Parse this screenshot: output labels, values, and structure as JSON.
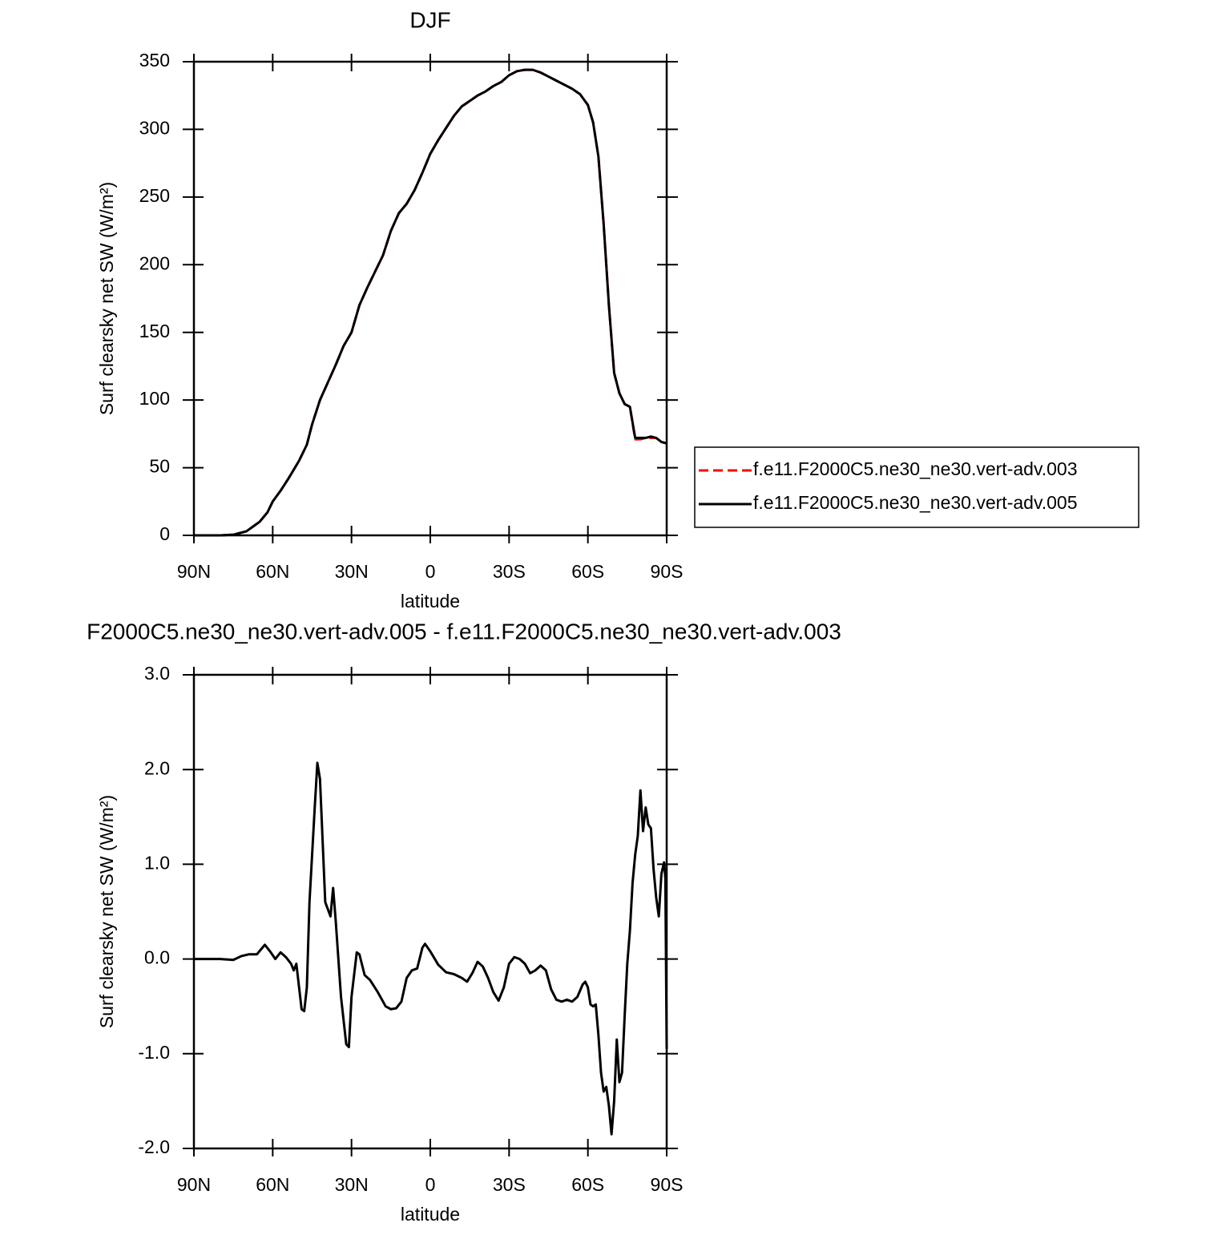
{
  "chart_data": [
    {
      "type": "line",
      "title": "DJF",
      "xlabel": "latitude",
      "ylabel": "Surf clearsky net SW (W/m²)",
      "x": [
        90,
        80,
        75,
        70,
        65,
        62,
        60,
        57,
        54,
        50,
        47,
        45,
        42,
        39,
        36,
        33,
        30,
        27,
        24,
        21,
        18,
        15,
        12,
        9,
        6,
        3,
        0,
        -3,
        -6,
        -9,
        -12,
        -15,
        -18,
        -21,
        -24,
        -27,
        -30,
        -33,
        -36,
        -39,
        -42,
        -45,
        -48,
        -51,
        -54,
        -57,
        -60,
        -62,
        -64,
        -66,
        -68,
        -70,
        -72,
        -74,
        -76,
        -78,
        -80,
        -82,
        -84,
        -86,
        -88,
        -90
      ],
      "series": [
        {
          "name": "f.e11.F2000C5.ne30_ne30.vert-adv.003",
          "color": "#ff0000",
          "dash": true,
          "values": [
            0,
            0,
            0.5,
            3,
            10,
            17,
            25,
            33,
            42,
            55,
            67,
            82,
            100,
            113,
            126,
            140,
            150,
            170,
            183,
            195,
            207,
            225,
            238,
            245,
            255,
            268,
            282,
            292,
            301,
            310,
            317,
            321,
            325,
            328,
            332,
            335,
            340,
            343,
            344,
            344,
            342,
            339,
            336,
            333,
            330,
            326,
            318,
            305,
            280,
            230,
            170,
            120,
            105,
            97,
            95,
            71,
            71,
            72,
            72,
            72,
            69,
            68
          ]
        },
        {
          "name": "f.e11.F2000C5.ne30_ne30.vert-adv.005",
          "color": "#000000",
          "dash": false,
          "values": [
            0,
            0,
            0.5,
            3,
            10,
            17,
            25,
            33,
            42,
            55,
            67,
            82,
            100,
            113,
            126,
            140,
            150,
            170,
            183,
            195,
            207,
            225,
            238,
            245,
            255,
            268,
            282,
            292,
            301,
            310,
            317,
            321,
            325,
            328,
            332,
            335,
            340,
            343,
            344,
            344,
            342,
            339,
            336,
            333,
            330,
            326,
            318,
            305,
            280,
            230,
            170,
            120,
            105,
            97,
            95,
            72,
            72,
            72,
            73,
            72,
            69,
            68
          ]
        }
      ],
      "xlim": [
        90,
        -90
      ],
      "xticks": [
        {
          "value": 90,
          "label": "90N"
        },
        {
          "value": 60,
          "label": "60N"
        },
        {
          "value": 30,
          "label": "30N"
        },
        0,
        {
          "value": -30,
          "label": "30S"
        },
        {
          "value": -60,
          "label": "60S"
        },
        {
          "value": -90,
          "label": "90S"
        }
      ],
      "ylim": [
        0,
        350
      ],
      "yticks": [
        0,
        50,
        100,
        150,
        200,
        250,
        300,
        350
      ],
      "legend": "outside-right"
    },
    {
      "type": "line",
      "title": "F2000C5.ne30_ne30.vert-adv.005 - f.e11.F2000C5.ne30_ne30.vert-adv.003",
      "xlabel": "latitude",
      "ylabel": "Surf clearsky net SW (W/m²)",
      "x": [
        90,
        80,
        75,
        72,
        69,
        66,
        63,
        61,
        59,
        57,
        55,
        53,
        52,
        51,
        49,
        48,
        47,
        46,
        44,
        43,
        42,
        40,
        38,
        37,
        36,
        34,
        32,
        31,
        30,
        28,
        27,
        25,
        23,
        20,
        17,
        15,
        13,
        11,
        9,
        7,
        5,
        3,
        2,
        0,
        -3,
        -6,
        -9,
        -12,
        -14,
        -16,
        -18,
        -20,
        -22,
        -24,
        -26,
        -28,
        -30,
        -32,
        -34,
        -36,
        -38,
        -40,
        -42,
        -44,
        -46,
        -48,
        -50,
        -52,
        -54,
        -56,
        -58,
        -59,
        -60,
        -61,
        -62,
        -63,
        -64,
        -65,
        -66,
        -67,
        -68,
        -69,
        -70,
        -71,
        -72,
        -73,
        -74,
        -75,
        -76,
        -77,
        -78,
        -79,
        -80,
        -81,
        -82,
        -83,
        -84,
        -85,
        -86,
        -87,
        -88,
        -89,
        -89.5,
        -90
      ],
      "values": [
        0,
        0,
        -0.01,
        0.03,
        0.05,
        0.05,
        0.15,
        0.08,
        0,
        0.07,
        0.02,
        -0.05,
        -0.12,
        -0.05,
        -0.53,
        -0.55,
        -0.3,
        0.6,
        1.6,
        2.07,
        1.9,
        0.6,
        0.45,
        0.75,
        0.4,
        -0.4,
        -0.9,
        -0.93,
        -0.4,
        0.07,
        0.05,
        -0.17,
        -0.22,
        -0.35,
        -0.5,
        -0.53,
        -0.52,
        -0.45,
        -0.2,
        -0.12,
        -0.1,
        0.12,
        0.16,
        0.08,
        -0.06,
        -0.14,
        -0.16,
        -0.2,
        -0.24,
        -0.15,
        -0.03,
        -0.08,
        -0.2,
        -0.35,
        -0.44,
        -0.3,
        -0.05,
        0.02,
        0,
        -0.05,
        -0.15,
        -0.12,
        -0.07,
        -0.12,
        -0.32,
        -0.43,
        -0.45,
        -0.43,
        -0.45,
        -0.4,
        -0.27,
        -0.24,
        -0.3,
        -0.48,
        -0.5,
        -0.48,
        -0.8,
        -1.2,
        -1.4,
        -1.35,
        -1.55,
        -1.85,
        -1.5,
        -0.85,
        -1.3,
        -1.2,
        -0.6,
        -0.05,
        0.3,
        0.8,
        1.1,
        1.3,
        1.78,
        1.35,
        1.6,
        1.42,
        1.38,
        0.95,
        0.65,
        0.45,
        0.9,
        1.02,
        0.85,
        -0.95
      ],
      "color": "#000000",
      "xlim": [
        90,
        -90
      ],
      "xticks": [
        {
          "value": 90,
          "label": "90N"
        },
        {
          "value": 60,
          "label": "60N"
        },
        {
          "value": 30,
          "label": "30N"
        },
        0,
        {
          "value": -30,
          "label": "30S"
        },
        {
          "value": -60,
          "label": "60S"
        },
        {
          "value": -90,
          "label": "90S"
        }
      ],
      "ylim": [
        -2,
        3
      ],
      "yticks": [
        {
          "value": -2,
          "label": "-2.0"
        },
        {
          "value": -1,
          "label": "-1.0"
        },
        {
          "value": 0,
          "label": "0.0"
        },
        {
          "value": 1,
          "label": "1.0"
        },
        {
          "value": 2,
          "label": "2.0"
        },
        {
          "value": 3,
          "label": "3.0"
        }
      ]
    }
  ]
}
